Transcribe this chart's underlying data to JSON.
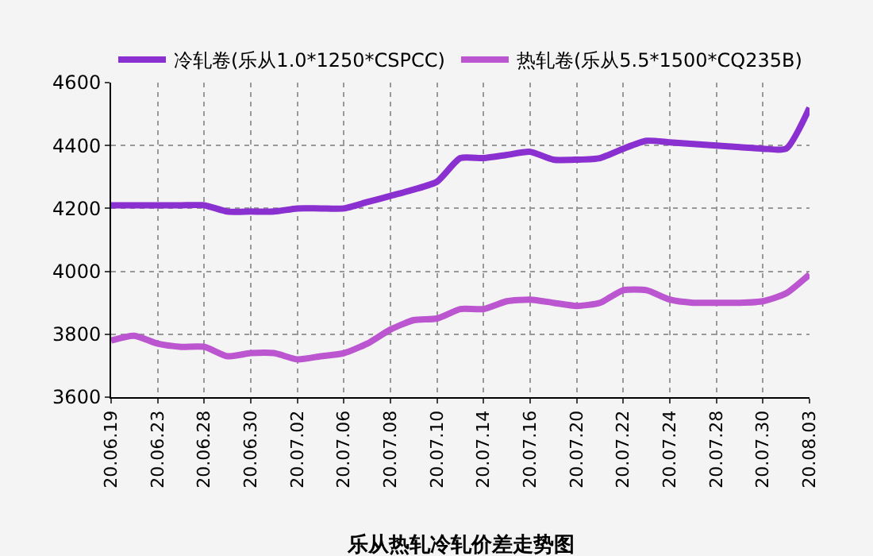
{
  "chart_data": {
    "type": "line",
    "title": "乐从热轧冷轧价差走势图",
    "categories": [
      "20.06.19",
      null,
      "20.06.23",
      null,
      "20.06.28",
      null,
      "20.06.30",
      null,
      "20.07.02",
      null,
      "20.07.06",
      null,
      "20.07.08",
      null,
      "20.07.10",
      null,
      "20.07.14",
      null,
      "20.07.16",
      null,
      "20.07.20",
      null,
      "20.07.22",
      null,
      "20.07.24",
      null,
      "20.07.28",
      null,
      "20.07.30",
      null,
      "20.08.03"
    ],
    "series": [
      {
        "name": "冷轧卷(乐从1.0*1250*CSPCC)",
        "color": "#8a2fd0",
        "values": [
          4210,
          4210,
          4210,
          4210,
          4210,
          4190,
          4190,
          4190,
          4200,
          4200,
          4200,
          4220,
          4240,
          4260,
          4285,
          4360,
          4360,
          4370,
          4380,
          4355,
          4355,
          4360,
          4390,
          4415,
          4410,
          4405,
          4400,
          4395,
          4390,
          4390,
          4520
        ]
      },
      {
        "name": "热轧卷(乐从5.5*1500*CQ235B)",
        "color": "#bb55d0",
        "values": [
          3780,
          3795,
          3770,
          3760,
          3760,
          3730,
          3740,
          3740,
          3720,
          3730,
          3740,
          3770,
          3815,
          3845,
          3850,
          3880,
          3880,
          3905,
          3910,
          3900,
          3890,
          3900,
          3940,
          3940,
          3910,
          3900,
          3900,
          3900,
          3905,
          3930,
          3990
        ]
      }
    ],
    "ylim": [
      3600,
      4600
    ],
    "yticks": [
      3600,
      3800,
      4000,
      4200,
      4400,
      4600
    ],
    "grid": true,
    "legend": "top",
    "marker": "none",
    "line_style": "solid"
  }
}
